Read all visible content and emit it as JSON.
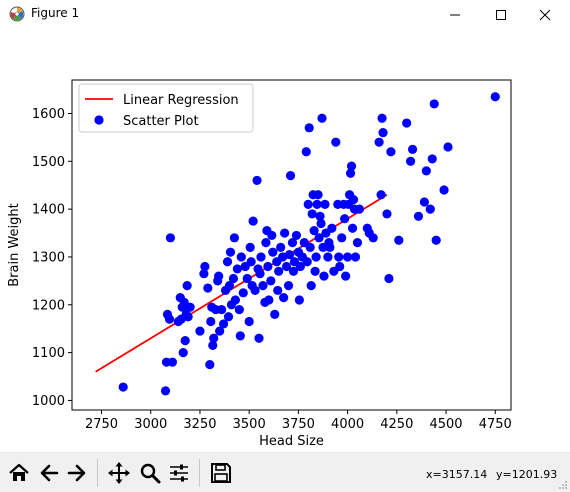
{
  "window": {
    "title": "Figure 1",
    "controls": [
      "minimize",
      "maximize",
      "close"
    ]
  },
  "toolbar": {
    "buttons": [
      {
        "name": "home",
        "icon": "home-icon"
      },
      {
        "name": "back",
        "icon": "arrow-left-icon"
      },
      {
        "name": "forward",
        "icon": "arrow-right-icon"
      },
      {
        "name": "pan",
        "icon": "move-arrows-icon"
      },
      {
        "name": "zoom",
        "icon": "magnifier-icon"
      },
      {
        "name": "configure-subplots",
        "icon": "sliders-icon"
      },
      {
        "name": "save",
        "icon": "floppy-disk-icon"
      }
    ],
    "coord_x": "x=3157.14",
    "coord_y": "y=1201.93"
  },
  "chart_data": {
    "type": "scatter",
    "xlabel": "Head Size",
    "ylabel": "Brain Weight",
    "xlim": [
      2600,
      4830
    ],
    "ylim": [
      980,
      1670
    ],
    "x_ticks": [
      2750,
      3000,
      3250,
      3500,
      3750,
      4000,
      4250,
      4500,
      4750
    ],
    "y_ticks": [
      1000,
      1100,
      1200,
      1300,
      1400,
      1500,
      1600
    ],
    "legend": {
      "placement": "upper-left",
      "entries": [
        {
          "label": "Linear Regression",
          "color": "#ff0000",
          "marker": "line"
        },
        {
          "label": "Scatter Plot",
          "color": "#0000ff",
          "marker": "circle"
        }
      ]
    },
    "series": [
      {
        "name": "Linear Regression",
        "kind": "line",
        "color": "#ff0000",
        "x": [
          2720,
          4200
        ],
        "y": [
          1060,
          1430
        ]
      },
      {
        "name": "Scatter Plot",
        "kind": "scatter",
        "color": "#0000ff",
        "points": [
          [
            2860,
            1028
          ],
          [
            3075,
            1020
          ],
          [
            3080,
            1080
          ],
          [
            3085,
            1180
          ],
          [
            3095,
            1170
          ],
          [
            3100,
            1340
          ],
          [
            3110,
            1080
          ],
          [
            3140,
            1165
          ],
          [
            3150,
            1215
          ],
          [
            3155,
            1170
          ],
          [
            3160,
            1195
          ],
          [
            3165,
            1100
          ],
          [
            3170,
            1205
          ],
          [
            3175,
            1125
          ],
          [
            3180,
            1180
          ],
          [
            3185,
            1240
          ],
          [
            3190,
            1175
          ],
          [
            3200,
            1195
          ],
          [
            3250,
            1145
          ],
          [
            3270,
            1265
          ],
          [
            3275,
            1280
          ],
          [
            3290,
            1235
          ],
          [
            3300,
            1075
          ],
          [
            3305,
            1165
          ],
          [
            3310,
            1195
          ],
          [
            3315,
            1115
          ],
          [
            3320,
            1130
          ],
          [
            3330,
            1190
          ],
          [
            3340,
            1250
          ],
          [
            3345,
            1260
          ],
          [
            3350,
            1145
          ],
          [
            3360,
            1190
          ],
          [
            3370,
            1160
          ],
          [
            3380,
            1230
          ],
          [
            3390,
            1290
          ],
          [
            3395,
            1175
          ],
          [
            3400,
            1240
          ],
          [
            3405,
            1310
          ],
          [
            3410,
            1200
          ],
          [
            3420,
            1255
          ],
          [
            3425,
            1340
          ],
          [
            3430,
            1210
          ],
          [
            3440,
            1275
          ],
          [
            3450,
            1190
          ],
          [
            3455,
            1135
          ],
          [
            3460,
            1300
          ],
          [
            3470,
            1225
          ],
          [
            3480,
            1280
          ],
          [
            3490,
            1255
          ],
          [
            3500,
            1165
          ],
          [
            3505,
            1320
          ],
          [
            3510,
            1290
          ],
          [
            3515,
            1240
          ],
          [
            3520,
            1375
          ],
          [
            3530,
            1230
          ],
          [
            3540,
            1460
          ],
          [
            3545,
            1275
          ],
          [
            3550,
            1130
          ],
          [
            3555,
            1265
          ],
          [
            3560,
            1300
          ],
          [
            3570,
            1240
          ],
          [
            3580,
            1205
          ],
          [
            3585,
            1330
          ],
          [
            3590,
            1355
          ],
          [
            3595,
            1280
          ],
          [
            3600,
            1210
          ],
          [
            3610,
            1250
          ],
          [
            3615,
            1345
          ],
          [
            3620,
            1310
          ],
          [
            3630,
            1180
          ],
          [
            3640,
            1290
          ],
          [
            3645,
            1230
          ],
          [
            3650,
            1270
          ],
          [
            3660,
            1320
          ],
          [
            3670,
            1300
          ],
          [
            3675,
            1215
          ],
          [
            3680,
            1350
          ],
          [
            3690,
            1280
          ],
          [
            3700,
            1240
          ],
          [
            3705,
            1305
          ],
          [
            3710,
            1470
          ],
          [
            3720,
            1330
          ],
          [
            3725,
            1270
          ],
          [
            3730,
            1290
          ],
          [
            3740,
            1345
          ],
          [
            3750,
            1310
          ],
          [
            3755,
            1210
          ],
          [
            3760,
            1280
          ],
          [
            3770,
            1300
          ],
          [
            3780,
            1330
          ],
          [
            3790,
            1520
          ],
          [
            3795,
            1290
          ],
          [
            3800,
            1410
          ],
          [
            3805,
            1570
          ],
          [
            3810,
            1320
          ],
          [
            3815,
            1240
          ],
          [
            3820,
            1390
          ],
          [
            3825,
            1430
          ],
          [
            3830,
            1355
          ],
          [
            3835,
            1270
          ],
          [
            3840,
            1300
          ],
          [
            3845,
            1410
          ],
          [
            3850,
            1430
          ],
          [
            3855,
            1340
          ],
          [
            3860,
            1385
          ],
          [
            3865,
            1370
          ],
          [
            3870,
            1590
          ],
          [
            3875,
            1320
          ],
          [
            3880,
            1260
          ],
          [
            3885,
            1410
          ],
          [
            3890,
            1350
          ],
          [
            3900,
            1300
          ],
          [
            3905,
            1330
          ],
          [
            3910,
            1320
          ],
          [
            3920,
            1360
          ],
          [
            3930,
            1270
          ],
          [
            3940,
            1540
          ],
          [
            3950,
            1410
          ],
          [
            3955,
            1300
          ],
          [
            3960,
            1280
          ],
          [
            3970,
            1340
          ],
          [
            3980,
            1410
          ],
          [
            3985,
            1380
          ],
          [
            3990,
            1260
          ],
          [
            4000,
            1300
          ],
          [
            4005,
            1410
          ],
          [
            4010,
            1430
          ],
          [
            4015,
            1475
          ],
          [
            4020,
            1490
          ],
          [
            4025,
            1360
          ],
          [
            4030,
            1420
          ],
          [
            4035,
            1400
          ],
          [
            4040,
            1300
          ],
          [
            4050,
            1330
          ],
          [
            4060,
            1400
          ],
          [
            4100,
            1360
          ],
          [
            4110,
            1350
          ],
          [
            4130,
            1340
          ],
          [
            4160,
            1540
          ],
          [
            4170,
            1430
          ],
          [
            4175,
            1590
          ],
          [
            4180,
            1560
          ],
          [
            4200,
            1390
          ],
          [
            4210,
            1255
          ],
          [
            4220,
            1520
          ],
          [
            4260,
            1335
          ],
          [
            4300,
            1580
          ],
          [
            4320,
            1500
          ],
          [
            4330,
            1525
          ],
          [
            4360,
            1385
          ],
          [
            4390,
            1415
          ],
          [
            4400,
            1480
          ],
          [
            4420,
            1400
          ],
          [
            4430,
            1505
          ],
          [
            4440,
            1620
          ],
          [
            4450,
            1335
          ],
          [
            4490,
            1440
          ],
          [
            4510,
            1530
          ],
          [
            4750,
            1635
          ]
        ]
      }
    ]
  }
}
